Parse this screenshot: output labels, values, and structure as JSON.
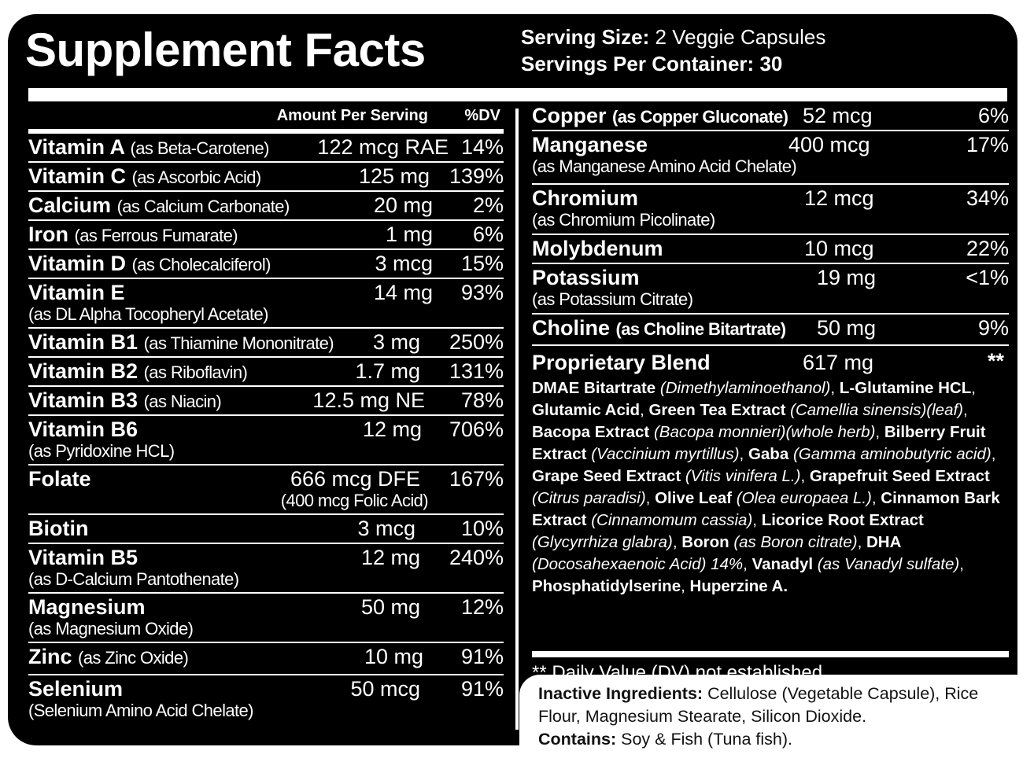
{
  "header": {
    "title": "Supplement Facts",
    "serving_size_label": "Serving Size:",
    "serving_size_value": "2 Veggie Capsules",
    "servings_per_container_label": "Servings Per Container:",
    "servings_per_container_value": "30"
  },
  "left_table": {
    "amount_header": "Amount Per Serving",
    "dv_header": "%DV",
    "rows": [
      {
        "name": "Vitamin A",
        "source": "(as Beta-Carotene)",
        "amount": "122 mcg RAE",
        "dv": "14%"
      },
      {
        "name": "Vitamin C",
        "source": "(as Ascorbic Acid)",
        "amount": "125 mg",
        "dv": "139%"
      },
      {
        "name": "Calcium",
        "source": "(as Calcium Carbonate)",
        "amount": "20 mg",
        "dv": "2%"
      },
      {
        "name": "Iron",
        "source": "(as Ferrous Fumarate)",
        "amount": "1 mg",
        "dv": "6%"
      },
      {
        "name": "Vitamin D",
        "source": "(as Cholecalciferol)",
        "amount": "3 mcg",
        "dv": "15%"
      },
      {
        "name": "Vitamin E",
        "source": "(as DL Alpha Tocopheryl Acetate)",
        "amount": "14 mg",
        "dv": "93%"
      },
      {
        "name": "Vitamin B1",
        "source": "(as Thiamine Mononitrate)",
        "amount": "3 mg",
        "dv": "250%"
      },
      {
        "name": "Vitamin B2",
        "source": "(as Riboflavin)",
        "amount": "1.7 mg",
        "dv": "131%"
      },
      {
        "name": "Vitamin B3",
        "source": "(as Niacin)",
        "amount": "12.5 mg NE",
        "dv": "78%"
      },
      {
        "name": "Vitamin B6",
        "source": "(as Pyridoxine HCL)",
        "amount": "12 mg",
        "dv": "706%"
      },
      {
        "name": "Folate",
        "source": "",
        "amount": "666 mcg DFE",
        "sub": "(400 mcg Folic Acid)",
        "dv": "167%"
      },
      {
        "name": "Biotin",
        "source": "",
        "amount": "3 mcg",
        "dv": "10%"
      },
      {
        "name": "Vitamin B5",
        "source": "(as D-Calcium Pantothenate)",
        "amount": "12 mg",
        "dv": "240%"
      },
      {
        "name": "Magnesium",
        "source": "(as Magnesium Oxide)",
        "amount": "50 mg",
        "dv": "12%"
      },
      {
        "name": "Zinc",
        "source": "(as Zinc Oxide)",
        "amount": "10 mg",
        "dv": "91%"
      },
      {
        "name": "Selenium",
        "source": "(Selenium Amino Acid Chelate)",
        "amount": "50 mcg",
        "dv": "91%"
      }
    ]
  },
  "right_table": {
    "rows": [
      {
        "name": "Copper",
        "source": "(as Copper Gluconate)",
        "amount": "52 mcg",
        "dv": "6%"
      },
      {
        "name": "Manganese",
        "source": "(as Manganese Amino Acid Chelate)",
        "amount": "400 mcg",
        "dv": "17%"
      },
      {
        "name": "Chromium",
        "source": "(as Chromium Picolinate)",
        "amount": "12 mcg",
        "dv": "34%"
      },
      {
        "name": "Molybdenum",
        "source": "",
        "amount": "10 mcg",
        "dv": "22%"
      },
      {
        "name": "Potassium",
        "source": "(as Potassium Citrate)",
        "amount": "19 mg",
        "dv": "<1%"
      },
      {
        "name": "Choline",
        "source": "(as Choline Bitartrate)",
        "amount": "50 mg",
        "dv": "9%"
      }
    ],
    "blend": {
      "name": "Proprietary Blend",
      "amount": "617 mg",
      "dv": "**",
      "ingredients": [
        {
          "name": "DMAE Bitartrate",
          "detail": "(Dimethylaminoethanol)"
        },
        {
          "name": "L-Glutamine HCL",
          "detail": ""
        },
        {
          "name": "Glutamic Acid",
          "detail": ""
        },
        {
          "name": "Green Tea Extract",
          "detail": "(Camellia sinensis)(leaf)"
        },
        {
          "name": "Bacopa Extract",
          "detail": "(Bacopa monnieri)(whole herb)"
        },
        {
          "name": "Bilberry Fruit Extract",
          "detail": "(Vaccinium myrtillus)"
        },
        {
          "name": "Gaba",
          "detail": "(Gamma aminobutyric acid)"
        },
        {
          "name": "Grape Seed Extract",
          "detail": "(Vitis vinifera L.)"
        },
        {
          "name": "Grapefruit Seed Extract",
          "detail": "(Citrus paradisi)"
        },
        {
          "name": "Olive Leaf",
          "detail": "(Olea europaea L.)"
        },
        {
          "name": "Cinnamon Bark Extract",
          "detail": "(Cinnamomum cassia)"
        },
        {
          "name": "Licorice Root Extract",
          "detail": "(Glycyrrhiza glabra)"
        },
        {
          "name": "Boron",
          "detail": "(as Boron citrate)"
        },
        {
          "name": "DHA",
          "detail": "(Docosahexaenoic Acid) 14%"
        },
        {
          "name": "Vanadyl",
          "detail": "(as Vanadyl sulfate)"
        },
        {
          "name": "Phosphatidylserine",
          "detail": ""
        },
        {
          "name": "Huperzine A.",
          "detail": ""
        }
      ]
    },
    "footnote": "** Daily Value (DV) not established"
  },
  "inactive": {
    "label": "Inactive Ingredients:",
    "text": "Cellulose (Vegetable Capsule), Rice Flour, Magnesium Stearate, Silicon Dioxide.",
    "contains_label": "Contains:",
    "contains_text": "Soy & Fish (Tuna fish)."
  },
  "colors": {
    "panel": "#000000",
    "text": "#ffffff",
    "inactive_bg": "#ffffff"
  }
}
